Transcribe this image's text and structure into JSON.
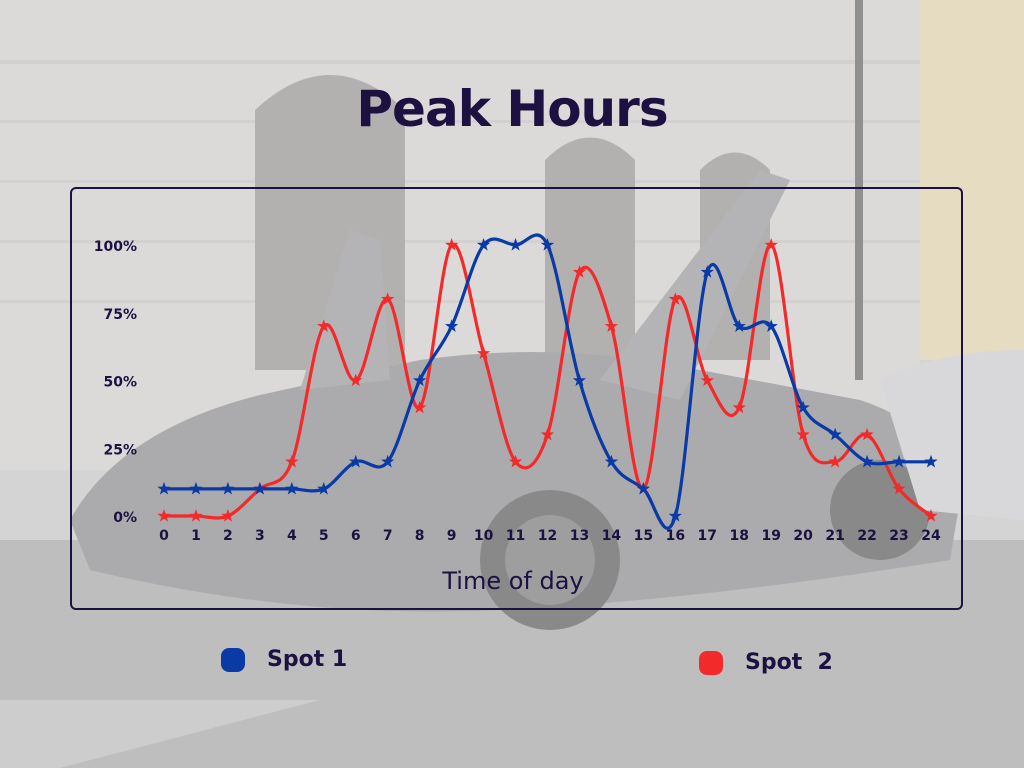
{
  "colors": {
    "spot1": "#0a3aa6",
    "spot2": "#f22a2a",
    "text": "#1c1140"
  },
  "chart_data": {
    "type": "line",
    "title": "Peak Hours",
    "xlabel": "Time of day",
    "ylabel": "",
    "x": [
      0,
      1,
      2,
      3,
      4,
      5,
      6,
      7,
      8,
      9,
      10,
      11,
      12,
      13,
      14,
      15,
      16,
      17,
      18,
      19,
      20,
      21,
      22,
      23,
      24
    ],
    "ylim": [
      0,
      100
    ],
    "yticks": [
      "0%",
      "25%",
      "50%",
      "75%",
      "100%"
    ],
    "ytick_values": [
      0,
      25,
      50,
      75,
      100
    ],
    "marker": "star",
    "legend": "bottom",
    "grid": false,
    "series": [
      {
        "name": "Spot 1",
        "color": "#0a3aa6",
        "values": [
          10,
          10,
          10,
          10,
          10,
          10,
          20,
          20,
          50,
          70,
          100,
          100,
          100,
          50,
          20,
          10,
          0,
          90,
          70,
          70,
          40,
          30,
          20,
          20,
          20
        ]
      },
      {
        "name": "Spot  2",
        "color": "#f22a2a",
        "values": [
          0,
          0,
          0,
          10,
          20,
          70,
          50,
          80,
          40,
          100,
          60,
          20,
          30,
          90,
          70,
          10,
          80,
          50,
          40,
          100,
          30,
          20,
          30,
          10,
          0
        ]
      }
    ]
  }
}
